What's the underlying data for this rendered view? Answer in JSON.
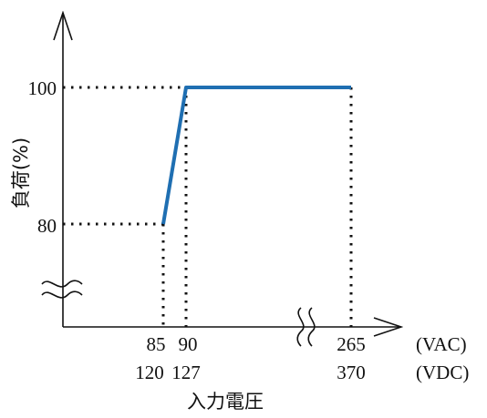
{
  "chart_data": {
    "type": "line",
    "xlabel": "入力電圧",
    "ylabel": "負荷(%)",
    "x_units": {
      "ac": "(VAC)",
      "dc": "(VDC)"
    },
    "x_ticks_ac": [
      "85",
      "90",
      "265"
    ],
    "x_ticks_dc": [
      "120",
      "127",
      "370"
    ],
    "y_ticks": [
      "80",
      "100"
    ],
    "x_axis_break": true,
    "y_axis_break": true,
    "guide_lines": "dotted",
    "series": [
      {
        "x": [
          85,
          90,
          265
        ],
        "y": [
          80,
          100,
          100
        ],
        "color": "#1f6fb2"
      }
    ]
  }
}
